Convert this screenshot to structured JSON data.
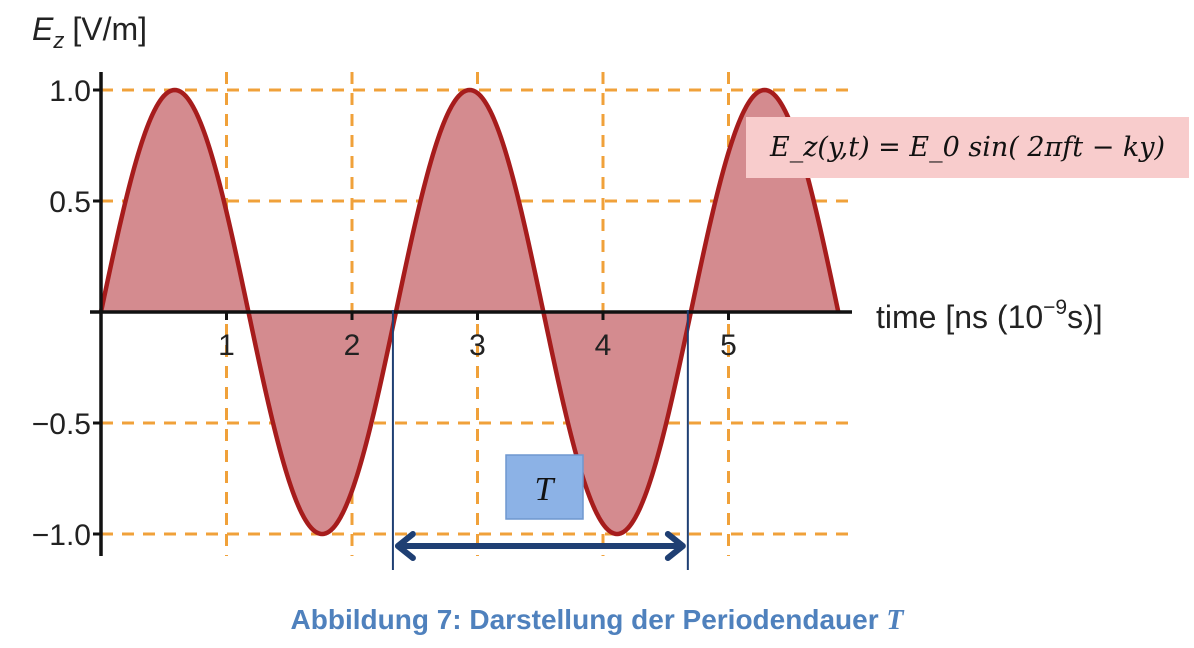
{
  "chart_data": {
    "type": "area",
    "ylabel_symbol": "E",
    "ylabel_subscript": "z",
    "ylabel_unit": "[V/m]",
    "xlabel_main": "time [ns (10",
    "xlabel_exponent": "−9",
    "xlabel_end": "s)]",
    "x_ticks": [
      1,
      2,
      3,
      4,
      5
    ],
    "x_tick_labels": [
      "1",
      "2",
      "3",
      "4",
      "5"
    ],
    "y_ticks": [
      1.0,
      0.5,
      -0.5,
      -1.0
    ],
    "y_tick_labels": [
      "1.0",
      "0.5",
      "−0.5",
      "−1.0"
    ],
    "xlim": [
      0,
      6
    ],
    "ylim": [
      -1.0,
      1.0
    ],
    "grid": true,
    "series": [
      {
        "function": "sin",
        "amplitude": 1.0,
        "period": 2.35,
        "phase": 0,
        "x_start": 0,
        "x_end": 5.875
      }
    ],
    "period_marker": {
      "label": "T",
      "x_start": 2.35,
      "x_end": 4.7
    },
    "formula": "E_z(y,t) = E_0 sin( 2πft − ky)"
  },
  "colors": {
    "curve": "#a61c1c",
    "fill": "#d48b8f",
    "grid": "#f0a13a",
    "axis": "#111111",
    "period_line": "#1f3f73",
    "formula_box": "#f8cccc",
    "period_box": "#8cb2e6",
    "caption": "#4f81bd"
  },
  "caption": {
    "text": "Abbildung 7: Darstellung der Periodendauer ",
    "symbol": "T"
  }
}
